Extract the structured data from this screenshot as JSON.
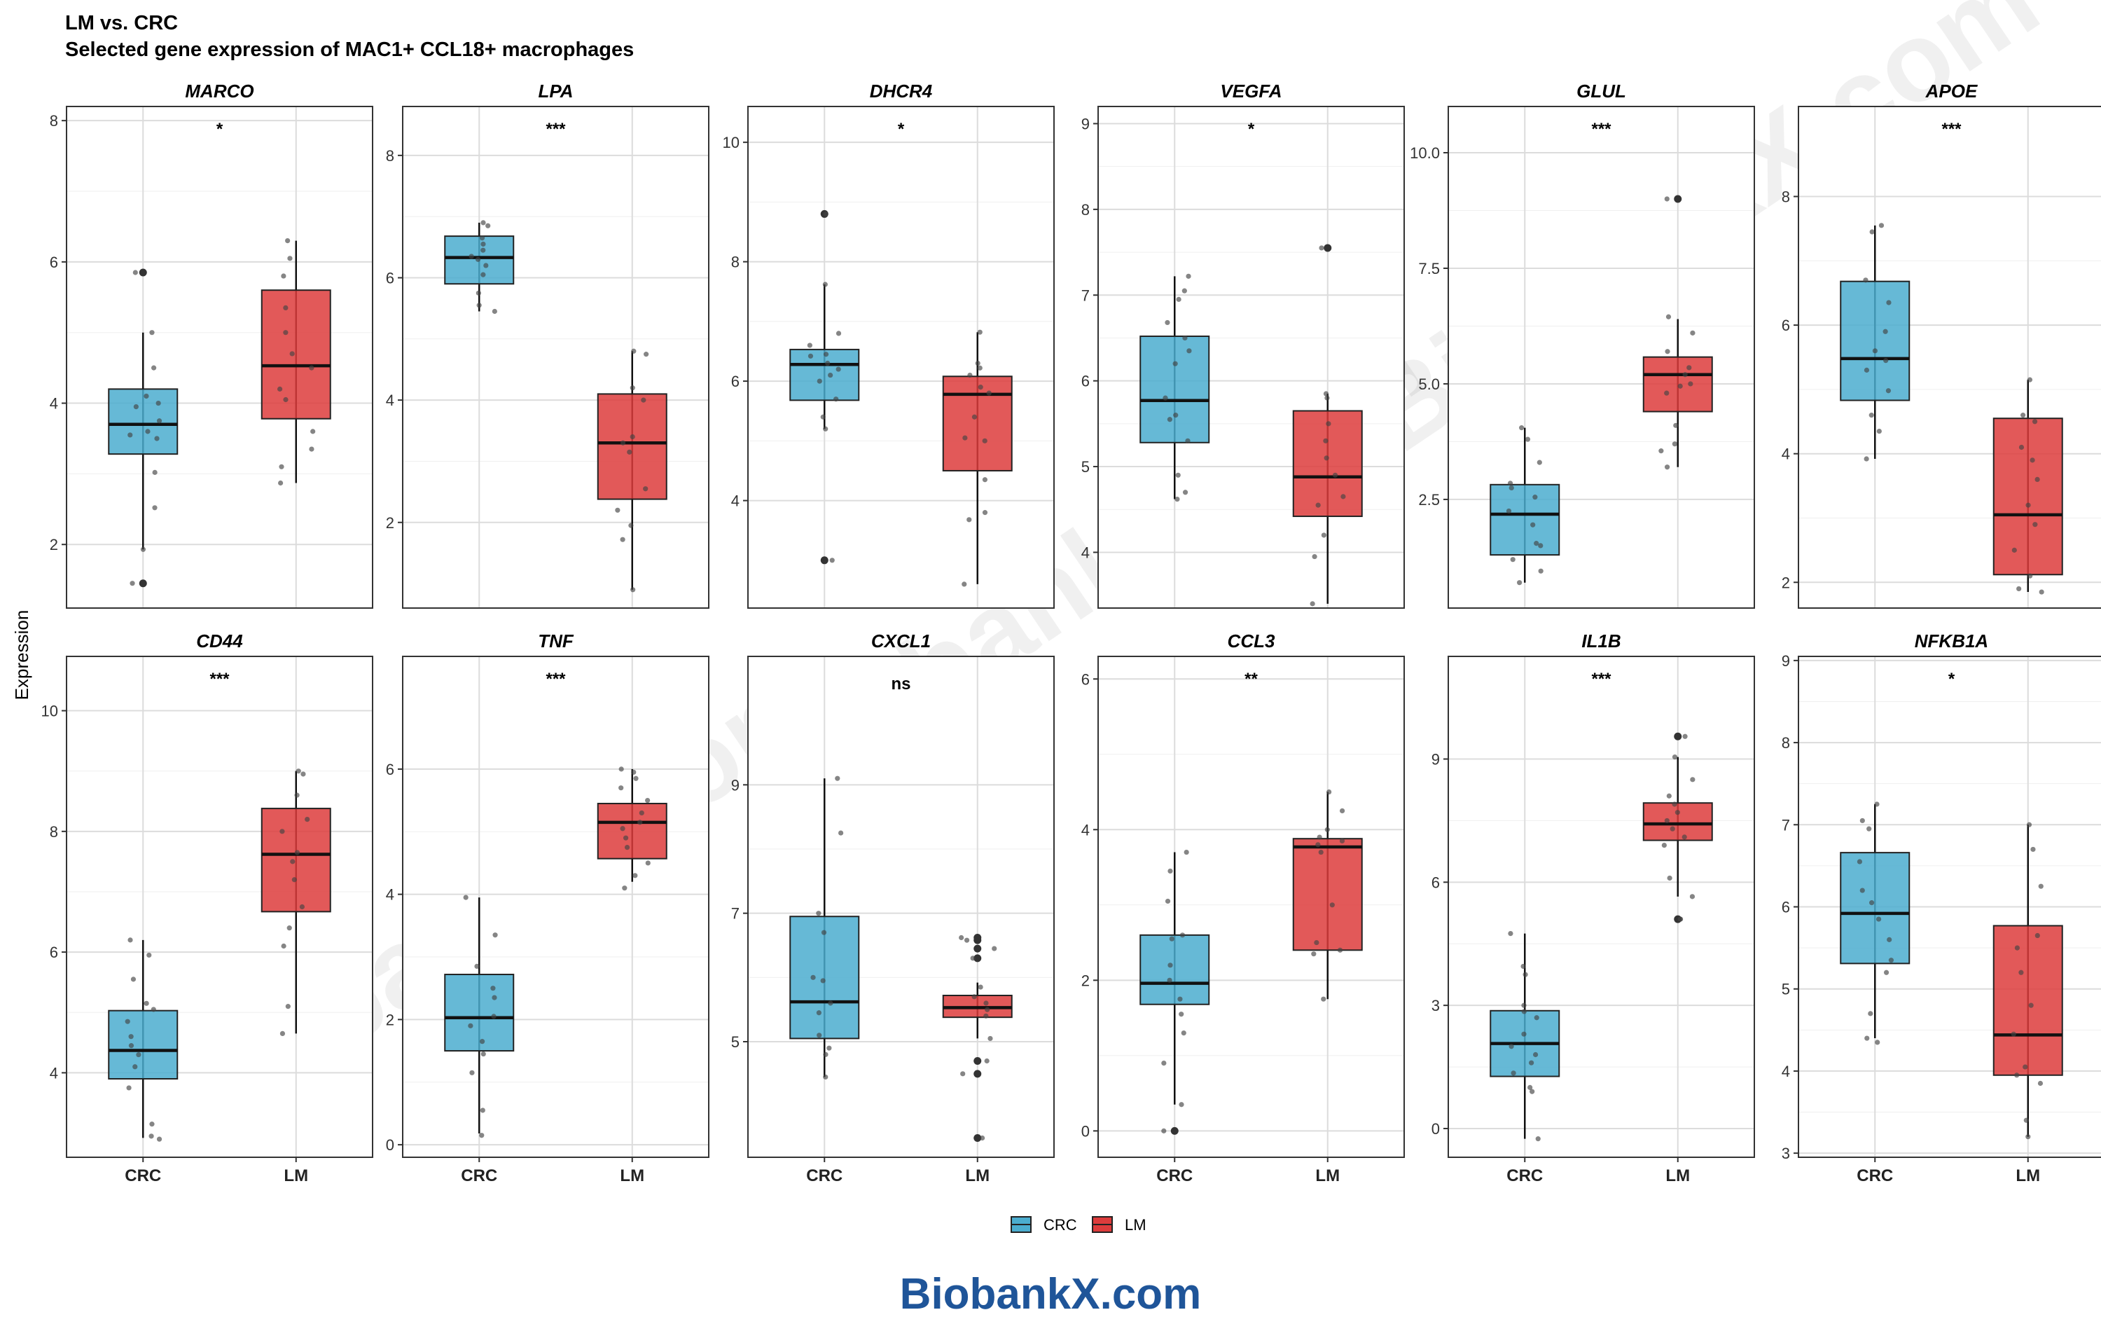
{
  "title_line1": "LM vs. CRC",
  "title_line2": "Selected gene expression of MAC1+ CCL18+ macrophages",
  "y_axis_label": "Expression",
  "legend": [
    {
      "label": "CRC",
      "color": "#4badcf"
    },
    {
      "label": "LM",
      "color": "#dd3c3c"
    }
  ],
  "brand_text": "BiobankX.com",
  "brand_color": "#1f5599",
  "watermark_text": "BiobankX.com",
  "chart_data": {
    "type": "boxplot",
    "categories": [
      "CRC",
      "LM"
    ],
    "panels": [
      {
        "gene": "MARCO",
        "sig": "*",
        "ylim": [
          1.1,
          8.2
        ],
        "ticks": [
          2,
          4,
          6,
          8
        ],
        "tick_labels": [
          "2",
          "4",
          "6",
          "8"
        ],
        "boxes": [
          {
            "group": "CRC",
            "q1": 3.28,
            "median": 3.7,
            "q3": 4.2,
            "whisker_low": 1.93,
            "whisker_high": 5.0,
            "outliers": [
              1.45,
              5.85
            ],
            "points": [
              1.45,
              1.93,
              2.52,
              3.02,
              3.5,
              3.55,
              3.6,
              3.75,
              3.95,
              4.0,
              4.1,
              4.5,
              5.0,
              5.85
            ]
          },
          {
            "group": "LM",
            "q1": 3.78,
            "median": 4.53,
            "q3": 5.6,
            "whisker_low": 2.87,
            "whisker_high": 6.3,
            "outliers": [],
            "points": [
              2.87,
              3.1,
              3.35,
              3.6,
              4.05,
              4.2,
              4.5,
              4.7,
              5.0,
              5.35,
              5.8,
              6.05,
              6.3
            ]
          }
        ]
      },
      {
        "gene": "LPA",
        "sig": "***",
        "ylim": [
          0.6,
          8.8
        ],
        "ticks": [
          2,
          4,
          6,
          8
        ],
        "tick_labels": [
          "2",
          "4",
          "6",
          "8"
        ],
        "boxes": [
          {
            "group": "CRC",
            "q1": 5.9,
            "median": 6.33,
            "q3": 6.68,
            "whisker_low": 5.45,
            "whisker_high": 6.9,
            "outliers": [],
            "points": [
              5.45,
              5.55,
              5.75,
              6.05,
              6.2,
              6.3,
              6.35,
              6.45,
              6.55,
              6.65,
              6.85,
              6.9
            ]
          },
          {
            "group": "LM",
            "q1": 2.38,
            "median": 3.3,
            "q3": 4.1,
            "whisker_low": 0.9,
            "whisker_high": 4.8,
            "outliers": [],
            "points": [
              0.9,
              1.72,
              1.95,
              2.2,
              2.55,
              3.15,
              3.3,
              3.4,
              4.0,
              4.2,
              4.75,
              4.8
            ]
          }
        ]
      },
      {
        "gene": "DHCR4",
        "sig": "*",
        "ylim": [
          2.2,
          10.6
        ],
        "ticks": [
          4,
          6,
          8,
          10
        ],
        "tick_labels": [
          "4",
          "6",
          "8",
          "10"
        ],
        "boxes": [
          {
            "group": "CRC",
            "q1": 5.68,
            "median": 6.28,
            "q3": 6.53,
            "whisker_low": 5.2,
            "whisker_high": 7.62,
            "outliers": [
              3.0,
              8.8
            ],
            "points": [
              3.0,
              5.2,
              5.4,
              5.7,
              6.0,
              6.1,
              6.2,
              6.3,
              6.42,
              6.45,
              6.6,
              6.8,
              7.62,
              8.8
            ]
          },
          {
            "group": "LM",
            "q1": 4.5,
            "median": 5.78,
            "q3": 6.08,
            "whisker_low": 2.6,
            "whisker_high": 6.82,
            "outliers": [],
            "points": [
              2.6,
              3.68,
              3.8,
              4.35,
              5.0,
              5.05,
              5.4,
              5.8,
              5.9,
              6.1,
              6.22,
              6.3,
              6.82
            ]
          }
        ]
      },
      {
        "gene": "VEGFA",
        "sig": "*",
        "ylim": [
          3.35,
          9.2
        ],
        "ticks": [
          4,
          5,
          6,
          7,
          8,
          9
        ],
        "tick_labels": [
          "4",
          "5",
          "6",
          "7",
          "8",
          "9"
        ],
        "boxes": [
          {
            "group": "CRC",
            "q1": 5.28,
            "median": 5.77,
            "q3": 6.52,
            "whisker_low": 4.62,
            "whisker_high": 7.22,
            "outliers": [],
            "points": [
              4.62,
              4.7,
              4.9,
              5.3,
              5.55,
              5.6,
              5.8,
              6.2,
              6.35,
              6.5,
              6.68,
              6.95,
              7.05,
              7.22
            ]
          },
          {
            "group": "LM",
            "q1": 4.42,
            "median": 4.88,
            "q3": 5.65,
            "whisker_low": 3.4,
            "whisker_high": 5.85,
            "outliers": [
              7.55
            ],
            "points": [
              3.4,
              3.95,
              4.2,
              4.55,
              4.65,
              4.9,
              5.1,
              5.3,
              5.5,
              5.8,
              5.85,
              7.55
            ]
          }
        ]
      },
      {
        "gene": "GLUL",
        "sig": "***",
        "ylim": [
          0.15,
          11.0
        ],
        "ticks": [
          2.5,
          5.0,
          7.5,
          10.0
        ],
        "tick_labels": [
          "2.5",
          "5.0",
          "7.5",
          "10.0"
        ],
        "boxes": [
          {
            "group": "CRC",
            "q1": 1.3,
            "median": 2.18,
            "q3": 2.82,
            "whisker_low": 0.7,
            "whisker_high": 4.05,
            "outliers": [],
            "points": [
              0.7,
              0.95,
              1.2,
              1.5,
              1.55,
              1.95,
              2.25,
              2.55,
              2.75,
              2.85,
              3.3,
              3.8,
              4.05
            ]
          },
          {
            "group": "LM",
            "q1": 4.4,
            "median": 5.2,
            "q3": 5.58,
            "whisker_low": 3.2,
            "whisker_high": 6.4,
            "outliers": [
              9.0
            ],
            "points": [
              3.2,
              3.55,
              3.7,
              4.1,
              4.8,
              4.95,
              5.0,
              5.2,
              5.35,
              5.7,
              6.1,
              6.45,
              9.0
            ]
          }
        ]
      },
      {
        "gene": "APOE",
        "sig": "***",
        "ylim": [
          1.6,
          9.4
        ],
        "ticks": [
          2,
          4,
          6,
          8
        ],
        "tick_labels": [
          "2",
          "4",
          "6",
          "8"
        ],
        "boxes": [
          {
            "group": "CRC",
            "q1": 4.83,
            "median": 5.48,
            "q3": 6.68,
            "whisker_low": 3.92,
            "whisker_high": 7.55,
            "outliers": [],
            "points": [
              3.92,
              4.35,
              4.6,
              4.98,
              5.3,
              5.45,
              5.6,
              5.9,
              6.35,
              6.7,
              7.45,
              7.55
            ]
          },
          {
            "group": "LM",
            "q1": 2.12,
            "median": 3.05,
            "q3": 4.55,
            "whisker_low": 1.85,
            "whisker_high": 5.15,
            "outliers": [],
            "points": [
              1.85,
              1.9,
              2.1,
              2.5,
              2.9,
              3.2,
              3.6,
              3.9,
              4.1,
              4.5,
              4.6,
              5.15
            ]
          }
        ]
      },
      {
        "gene": "CD44",
        "sig": "***",
        "ylim": [
          2.6,
          10.9
        ],
        "ticks": [
          4,
          6,
          8,
          10
        ],
        "tick_labels": [
          "4",
          "6",
          "8",
          "10"
        ],
        "boxes": [
          {
            "group": "CRC",
            "q1": 3.9,
            "median": 4.37,
            "q3": 5.03,
            "whisker_low": 2.92,
            "whisker_high": 6.2,
            "outliers": [],
            "points": [
              2.9,
              2.95,
              3.15,
              3.75,
              4.1,
              4.3,
              4.45,
              4.6,
              4.85,
              5.05,
              5.15,
              5.55,
              5.95,
              6.2
            ]
          },
          {
            "group": "LM",
            "q1": 6.67,
            "median": 7.62,
            "q3": 8.38,
            "whisker_low": 4.65,
            "whisker_high": 9.0,
            "outliers": [],
            "points": [
              4.65,
              5.1,
              6.1,
              6.4,
              6.75,
              7.2,
              7.5,
              7.65,
              8.0,
              8.2,
              8.6,
              8.95,
              9.0
            ]
          }
        ]
      },
      {
        "gene": "TNF",
        "sig": "***",
        "ylim": [
          -0.2,
          7.8
        ],
        "ticks": [
          0,
          2,
          4,
          6
        ],
        "tick_labels": [
          "0",
          "2",
          "4",
          "6"
        ],
        "boxes": [
          {
            "group": "CRC",
            "q1": 1.5,
            "median": 2.03,
            "q3": 2.72,
            "whisker_low": 0.18,
            "whisker_high": 3.95,
            "outliers": [],
            "points": [
              0.15,
              0.55,
              1.15,
              1.45,
              1.65,
              1.9,
              2.05,
              2.35,
              2.5,
              2.85,
              3.35,
              3.95
            ]
          },
          {
            "group": "LM",
            "q1": 4.57,
            "median": 5.15,
            "q3": 5.45,
            "whisker_low": 4.2,
            "whisker_high": 6.0,
            "outliers": [],
            "points": [
              4.1,
              4.3,
              4.5,
              4.75,
              4.9,
              5.05,
              5.15,
              5.3,
              5.5,
              5.7,
              5.85,
              5.95,
              6.0
            ]
          }
        ]
      },
      {
        "gene": "CXCL1",
        "sig": "ns",
        "ylim": [
          3.2,
          11.0
        ],
        "ticks": [
          5,
          7,
          9
        ],
        "tick_labels": [
          "5",
          "7",
          "9"
        ],
        "boxes": [
          {
            "group": "CRC",
            "q1": 5.05,
            "median": 5.62,
            "q3": 6.95,
            "whisker_low": 4.45,
            "whisker_high": 9.1,
            "outliers": [],
            "points": [
              4.45,
              4.8,
              4.9,
              5.1,
              5.45,
              5.6,
              5.95,
              6.0,
              6.7,
              7.0,
              8.25,
              9.1
            ]
          },
          {
            "group": "LM",
            "q1": 5.38,
            "median": 5.53,
            "q3": 5.72,
            "whisker_low": 5.05,
            "whisker_high": 5.92,
            "outliers": [
              3.5,
              4.5,
              4.7,
              6.3,
              6.45,
              6.58,
              6.62
            ],
            "points": [
              3.5,
              4.5,
              4.7,
              5.05,
              5.4,
              5.5,
              5.6,
              5.7,
              5.85,
              6.3,
              6.45,
              6.58,
              6.62
            ]
          }
        ]
      },
      {
        "gene": "CCL3",
        "sig": "**",
        "ylim": [
          -0.35,
          6.3
        ],
        "ticks": [
          0,
          2,
          4,
          6
        ],
        "tick_labels": [
          "0",
          "2",
          "4",
          "6"
        ],
        "boxes": [
          {
            "group": "CRC",
            "q1": 1.68,
            "median": 1.96,
            "q3": 2.6,
            "whisker_low": 0.35,
            "whisker_high": 3.7,
            "outliers": [
              0.0
            ],
            "points": [
              0.0,
              0.35,
              0.9,
              1.3,
              1.55,
              1.75,
              2.0,
              2.2,
              2.55,
              2.6,
              3.05,
              3.45,
              3.7
            ]
          },
          {
            "group": "LM",
            "q1": 2.4,
            "median": 3.77,
            "q3": 3.88,
            "whisker_low": 1.75,
            "whisker_high": 4.5,
            "outliers": [],
            "points": [
              1.75,
              2.35,
              2.4,
              2.5,
              3.0,
              3.7,
              3.8,
              3.85,
              3.9,
              4.0,
              4.25,
              4.5
            ]
          }
        ]
      },
      {
        "gene": "IL1B",
        "sig": "***",
        "ylim": [
          -0.7,
          11.5
        ],
        "ticks": [
          0,
          3,
          6,
          9
        ],
        "tick_labels": [
          "0",
          "3",
          "6",
          "9"
        ],
        "boxes": [
          {
            "group": "CRC",
            "q1": 1.27,
            "median": 2.07,
            "q3": 2.87,
            "whisker_low": -0.25,
            "whisker_high": 4.75,
            "outliers": [],
            "points": [
              -0.25,
              0.9,
              1.0,
              1.35,
              1.6,
              1.8,
              2.0,
              2.3,
              2.7,
              2.85,
              3.0,
              3.75,
              3.95,
              4.75
            ]
          },
          {
            "group": "LM",
            "q1": 7.02,
            "median": 7.42,
            "q3": 7.93,
            "whisker_low": 5.65,
            "whisker_high": 9.05,
            "outliers": [
              5.1,
              9.55
            ],
            "points": [
              5.1,
              5.1,
              5.65,
              6.1,
              6.9,
              7.1,
              7.3,
              7.5,
              7.7,
              7.9,
              8.1,
              8.5,
              9.05,
              9.55
            ]
          }
        ]
      },
      {
        "gene": "NFKB1A",
        "sig": "*",
        "ylim": [
          2.95,
          9.05
        ],
        "ticks": [
          3,
          4,
          5,
          6,
          7,
          8,
          9
        ],
        "tick_labels": [
          "3",
          "4",
          "5",
          "6",
          "7",
          "8",
          "9"
        ],
        "boxes": [
          {
            "group": "CRC",
            "q1": 5.31,
            "median": 5.92,
            "q3": 6.66,
            "whisker_low": 4.4,
            "whisker_high": 7.25,
            "outliers": [],
            "points": [
              4.35,
              4.4,
              4.7,
              5.2,
              5.35,
              5.6,
              5.85,
              6.05,
              6.2,
              6.55,
              6.95,
              7.05,
              7.25
            ]
          },
          {
            "group": "LM",
            "q1": 3.95,
            "median": 4.44,
            "q3": 5.77,
            "whisker_low": 3.2,
            "whisker_high": 7.0,
            "outliers": [],
            "points": [
              3.2,
              3.4,
              3.85,
              3.95,
              4.05,
              4.45,
              4.8,
              5.2,
              5.5,
              5.65,
              6.25,
              6.7,
              7.0
            ]
          }
        ]
      }
    ]
  }
}
